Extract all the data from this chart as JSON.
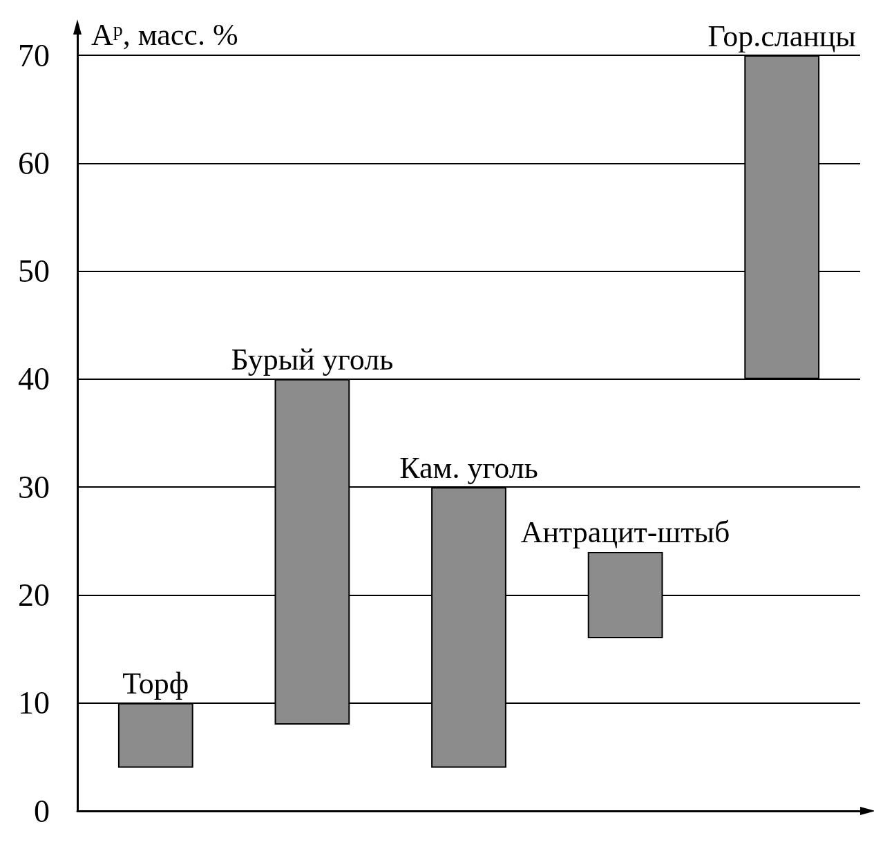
{
  "chart_data": {
    "type": "bar",
    "ylabel": "A$^{p}$, масс. %",
    "categories": [
      "Торф",
      "Бурый уголь",
      "Кам. уголь",
      "Антрацит-штыб",
      "Гор.сланцы"
    ],
    "base": [
      4,
      8,
      4,
      16,
      40
    ],
    "values": [
      6,
      32,
      26,
      8,
      30
    ],
    "color": "#8c8c8c",
    "ylim": [
      0,
      70
    ],
    "yticks": [
      0,
      10,
      20,
      30,
      40,
      50,
      60,
      70
    ],
    "grid": "y"
  }
}
